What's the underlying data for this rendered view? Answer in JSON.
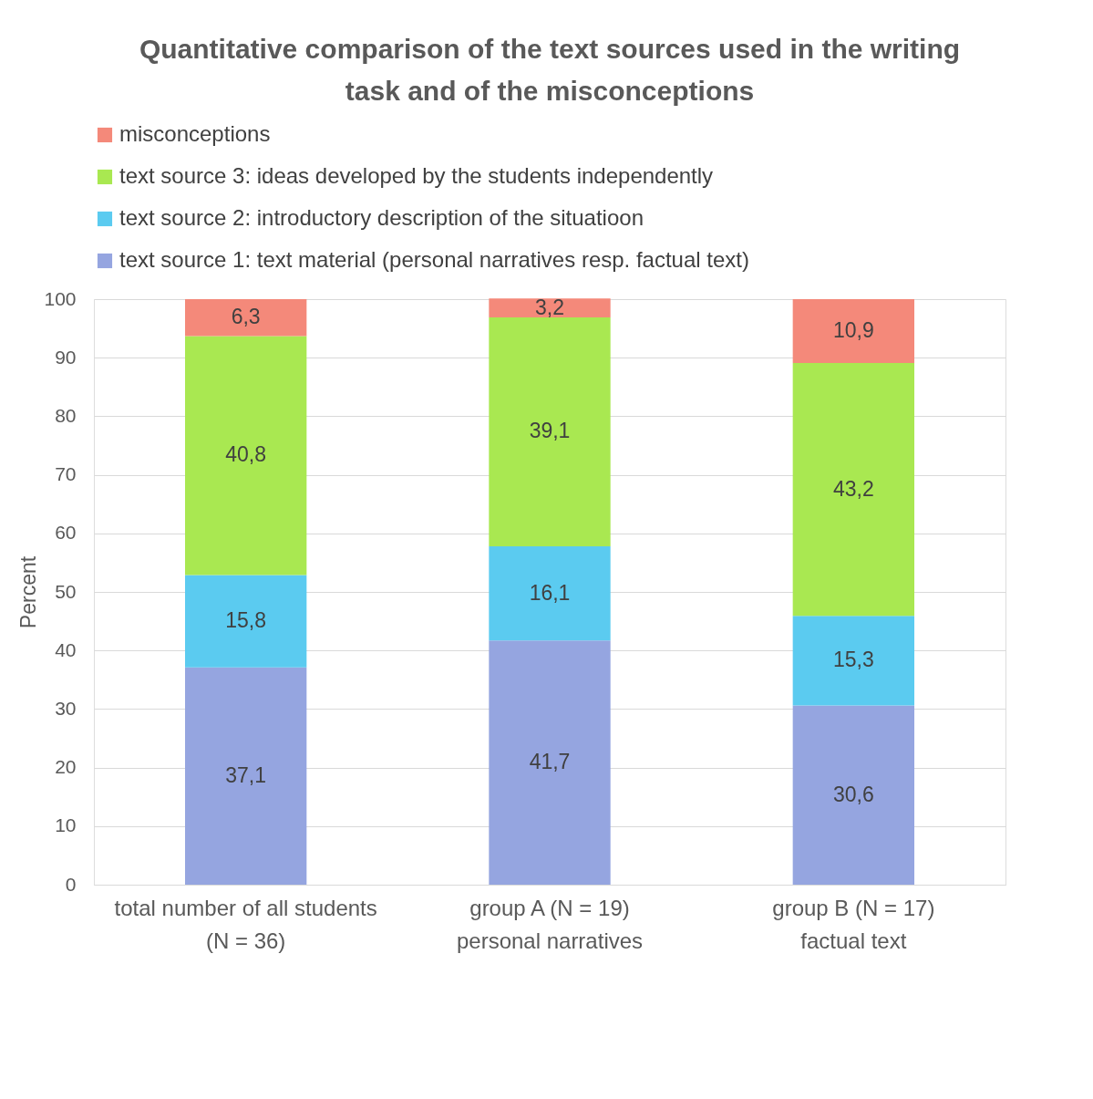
{
  "chart_data": {
    "type": "bar",
    "stacked": true,
    "title": "Quantitative comparison of the text sources used in the writing task and of the misconceptions",
    "ylabel": "Percent",
    "categories": [
      "total number of all students\n(N = 36)",
      "group A (N = 19)\npersonal narratives",
      "group B (N = 17)\nfactual text"
    ],
    "series": [
      {
        "name": "text source 1: text material (personal narratives resp. factual text)",
        "color": "#95a5e0",
        "values": [
          37.1,
          41.7,
          30.6
        ],
        "value_labels": [
          "37,1",
          "41,7",
          "30,6"
        ]
      },
      {
        "name": "text source 2: introductory description of the situatioon",
        "color": "#5bcbf0",
        "values": [
          15.8,
          16.1,
          15.3
        ],
        "value_labels": [
          "15,8",
          "16,1",
          "15,3"
        ]
      },
      {
        "name": "text source 3: ideas developed by the students independently",
        "color": "#a9e851",
        "values": [
          40.8,
          39.1,
          43.2
        ],
        "value_labels": [
          "40,8",
          "39,1",
          "43,2"
        ]
      },
      {
        "name": "misconceptions",
        "color": "#f4897a",
        "values": [
          6.3,
          3.2,
          10.9
        ],
        "value_labels": [
          "6,3",
          "3,2",
          "10,9"
        ]
      }
    ],
    "ylim": [
      0,
      100
    ],
    "yticks": [
      0,
      10,
      20,
      30,
      40,
      50,
      60,
      70,
      80,
      90,
      100
    ],
    "grid": "y",
    "legend": "top"
  }
}
